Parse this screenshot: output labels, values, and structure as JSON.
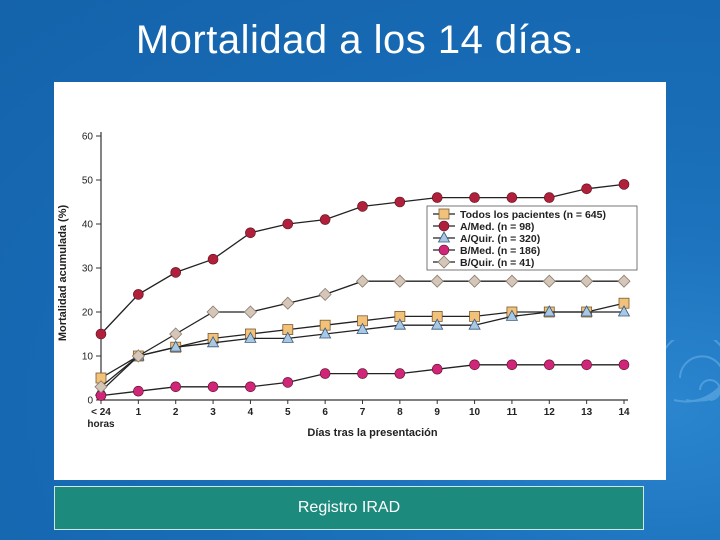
{
  "page": {
    "title": "Mortalidad a los 14 días."
  },
  "footer": {
    "source_label": "Registro IRAD"
  },
  "chart_data": {
    "type": "line",
    "title": "",
    "xlabel": "Días tras la presentación",
    "ylabel": "Mortalidad acumulada (%)",
    "categories": [
      "< 24 horas",
      "1",
      "2",
      "3",
      "4",
      "5",
      "6",
      "7",
      "8",
      "9",
      "10",
      "11",
      "12",
      "13",
      "14"
    ],
    "ylim": [
      0,
      60
    ],
    "yticks": [
      0,
      10,
      20,
      30,
      40,
      50,
      60
    ],
    "grid": false,
    "legend_position": "top-right",
    "series": [
      {
        "name": "Todos los pacientes (n = 645)",
        "marker": "square",
        "color": "#f3c27a",
        "values": [
          5,
          10,
          12,
          14,
          15,
          16,
          17,
          18,
          19,
          19,
          19,
          20,
          20,
          20,
          22
        ]
      },
      {
        "name": "A/Med. (n = 98)",
        "marker": "circle",
        "color": "#b0203a",
        "values": [
          15,
          24,
          29,
          32,
          38,
          40,
          41,
          44,
          45,
          46,
          46,
          46,
          46,
          48,
          49
        ]
      },
      {
        "name": "A/Quir. (n = 320)",
        "marker": "triangle",
        "color": "#a8c8e6",
        "values": [
          2,
          10,
          12,
          13,
          14,
          14,
          15,
          16,
          17,
          17,
          17,
          19,
          20,
          20,
          20
        ]
      },
      {
        "name": "B/Med. (n = 186)",
        "marker": "circle",
        "color": "#d0267a",
        "values": [
          1,
          2,
          3,
          3,
          3,
          4,
          6,
          6,
          6,
          7,
          8,
          8,
          8,
          8,
          8
        ]
      },
      {
        "name": "B/Quir. (n = 41)",
        "marker": "diamond",
        "color": "#d4c6b8",
        "values": [
          3,
          10,
          15,
          20,
          20,
          22,
          24,
          27,
          27,
          27,
          27,
          27,
          27,
          27,
          27
        ]
      }
    ]
  }
}
